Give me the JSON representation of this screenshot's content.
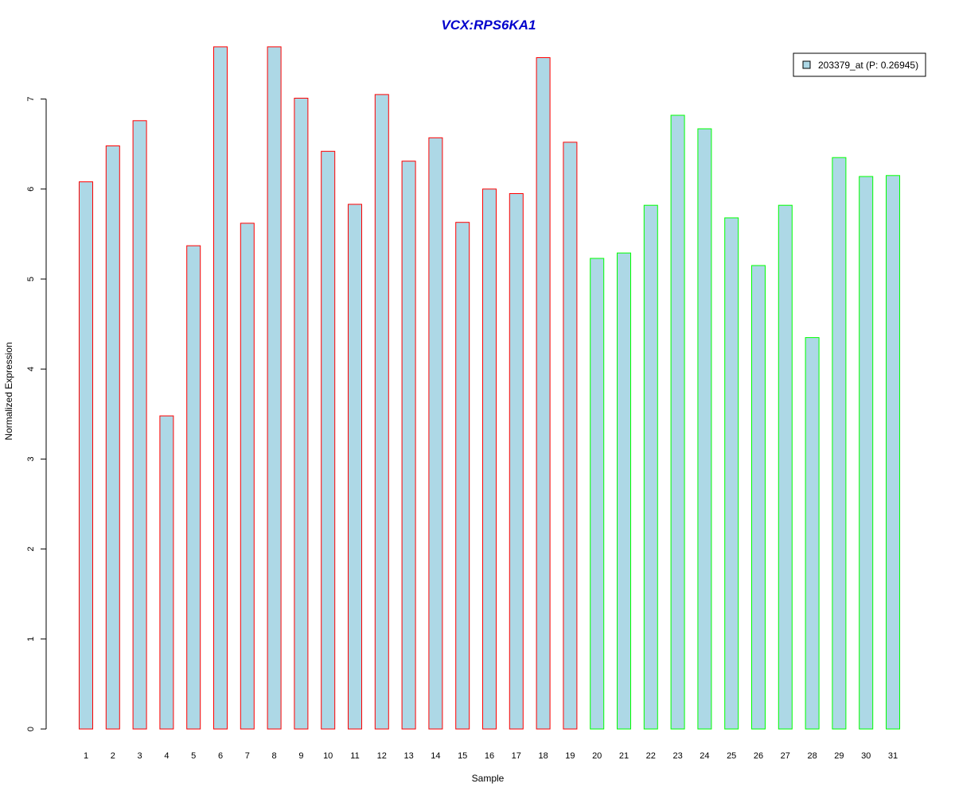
{
  "chart_data": {
    "type": "bar",
    "title": "VCX:RPS6KA1",
    "xlabel": "Sample",
    "ylabel": "Normalized Expression",
    "ylim": [
      0,
      7.6
    ],
    "yticks": [
      0,
      1,
      2,
      3,
      4,
      5,
      6,
      7
    ],
    "categories": [
      "1",
      "2",
      "3",
      "4",
      "5",
      "6",
      "7",
      "8",
      "9",
      "10",
      "11",
      "12",
      "13",
      "14",
      "15",
      "16",
      "17",
      "18",
      "19",
      "20",
      "21",
      "22",
      "23",
      "24",
      "25",
      "26",
      "27",
      "28",
      "29",
      "30",
      "31"
    ],
    "series": [
      {
        "name": "203379_at (P: 0.26945)",
        "values": [
          6.08,
          6.48,
          6.76,
          3.48,
          5.37,
          7.58,
          5.62,
          7.58,
          7.01,
          6.42,
          5.83,
          7.05,
          6.31,
          6.57,
          5.63,
          6.0,
          5.95,
          7.46,
          6.52,
          5.23,
          5.29,
          5.82,
          6.82,
          6.67,
          5.68,
          5.15,
          5.82,
          4.35,
          6.35,
          6.14,
          6.15
        ],
        "groups": [
          "a",
          "a",
          "a",
          "a",
          "a",
          "a",
          "a",
          "a",
          "a",
          "a",
          "a",
          "a",
          "a",
          "a",
          "a",
          "a",
          "a",
          "a",
          "a",
          "b",
          "b",
          "b",
          "b",
          "b",
          "b",
          "b",
          "b",
          "b",
          "b",
          "b",
          "b"
        ]
      }
    ],
    "legend": {
      "label": "203379_at (P: 0.26945)",
      "position": "top-right"
    },
    "grid": false,
    "colors": {
      "title": "#0000cc",
      "bar_fill": "#add8e6",
      "group_a_border": "#ff0000",
      "group_b_border": "#00ff00",
      "axis": "#000000"
    }
  }
}
